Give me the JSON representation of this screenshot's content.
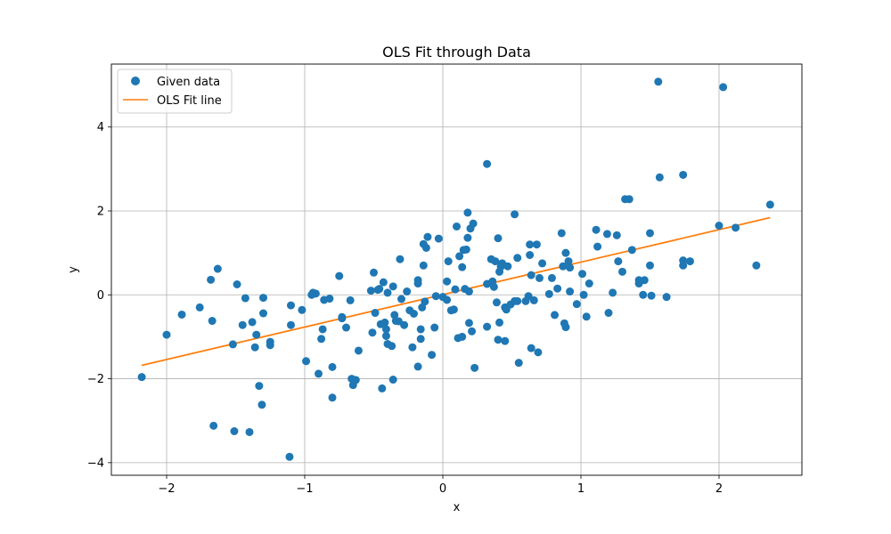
{
  "chart_data": {
    "type": "scatter",
    "title": "OLS Fit through Data",
    "xlabel": "x",
    "ylabel": "y",
    "xlim": [
      -2.4,
      2.6
    ],
    "ylim": [
      -4.3,
      5.5
    ],
    "xticks": [
      -2,
      -1,
      0,
      1,
      2
    ],
    "yticks": [
      -4,
      -2,
      0,
      2,
      4
    ],
    "grid": true,
    "legend_position": "top-left",
    "series": [
      {
        "name": "Given data",
        "kind": "points",
        "color": "#1f77b4",
        "points": [
          [
            -2.18,
            -1.96
          ],
          [
            -2.0,
            -0.95
          ],
          [
            -1.89,
            -0.47
          ],
          [
            -1.76,
            -0.3
          ],
          [
            -1.68,
            0.36
          ],
          [
            -1.66,
            -3.12
          ],
          [
            -1.67,
            -0.62
          ],
          [
            -1.63,
            0.62
          ],
          [
            -1.52,
            -1.18
          ],
          [
            -1.51,
            -3.25
          ],
          [
            -1.49,
            0.25
          ],
          [
            -1.45,
            -0.72
          ],
          [
            -1.43,
            -0.08
          ],
          [
            -1.4,
            -3.27
          ],
          [
            -1.38,
            -0.65
          ],
          [
            -1.36,
            -1.25
          ],
          [
            -1.35,
            -0.95
          ],
          [
            -1.33,
            -2.17
          ],
          [
            -1.31,
            -2.62
          ],
          [
            -1.3,
            -0.44
          ],
          [
            -1.3,
            -0.07
          ],
          [
            -1.25,
            -1.12
          ],
          [
            -1.25,
            -1.2
          ],
          [
            -1.1,
            -0.25
          ],
          [
            -1.11,
            -3.86
          ],
          [
            -1.1,
            -0.72
          ],
          [
            -1.02,
            -0.36
          ],
          [
            -0.99,
            -1.58
          ],
          [
            -0.95,
            0.0
          ],
          [
            -0.94,
            0.05
          ],
          [
            -0.92,
            0.03
          ],
          [
            -0.9,
            -1.88
          ],
          [
            -0.88,
            -1.05
          ],
          [
            -0.87,
            -0.82
          ],
          [
            -0.86,
            -0.12
          ],
          [
            -0.82,
            -0.09
          ],
          [
            -0.8,
            -2.45
          ],
          [
            -0.8,
            -1.72
          ],
          [
            -0.75,
            0.45
          ],
          [
            -0.73,
            -0.53
          ],
          [
            -0.73,
            -0.56
          ],
          [
            -0.7,
            -0.78
          ],
          [
            -0.67,
            -0.13
          ],
          [
            -0.66,
            -2.0
          ],
          [
            -0.65,
            -2.15
          ],
          [
            -0.63,
            -2.03
          ],
          [
            -0.61,
            -1.33
          ],
          [
            -0.52,
            0.1
          ],
          [
            -0.51,
            -0.9
          ],
          [
            -0.5,
            0.53
          ],
          [
            -0.49,
            -0.43
          ],
          [
            -0.47,
            0.12
          ],
          [
            -0.46,
            0.14
          ],
          [
            -0.45,
            -0.7
          ],
          [
            -0.44,
            -2.23
          ],
          [
            -0.43,
            0.3
          ],
          [
            -0.42,
            -0.66
          ],
          [
            -0.41,
            -0.98
          ],
          [
            -0.41,
            -0.82
          ],
          [
            -0.4,
            -1.17
          ],
          [
            -0.4,
            0.05
          ],
          [
            -0.37,
            -1.22
          ],
          [
            -0.36,
            -2.02
          ],
          [
            -0.36,
            0.2
          ],
          [
            -0.35,
            -0.48
          ],
          [
            -0.34,
            -0.62
          ],
          [
            -0.32,
            -0.63
          ],
          [
            -0.31,
            0.85
          ],
          [
            -0.3,
            -0.1
          ],
          [
            -0.28,
            -0.72
          ],
          [
            -0.26,
            0.08
          ],
          [
            -0.24,
            -0.37
          ],
          [
            -0.22,
            -1.25
          ],
          [
            -0.21,
            -0.45
          ],
          [
            -0.18,
            0.27
          ],
          [
            -0.18,
            0.35
          ],
          [
            -0.18,
            -1.71
          ],
          [
            -0.16,
            -0.82
          ],
          [
            -0.16,
            -1.05
          ],
          [
            -0.15,
            -0.3
          ],
          [
            -0.14,
            1.21
          ],
          [
            -0.14,
            0.7
          ],
          [
            -0.13,
            -0.16
          ],
          [
            -0.12,
            1.12
          ],
          [
            -0.11,
            1.38
          ],
          [
            -0.08,
            -1.43
          ],
          [
            -0.06,
            -0.78
          ],
          [
            -0.05,
            -0.03
          ],
          [
            -0.03,
            1.34
          ],
          [
            0.0,
            -0.05
          ],
          [
            0.03,
            0.32
          ],
          [
            0.03,
            -0.12
          ],
          [
            0.04,
            0.8
          ],
          [
            0.06,
            -0.37
          ],
          [
            0.08,
            -0.35
          ],
          [
            0.09,
            0.13
          ],
          [
            0.1,
            1.63
          ],
          [
            0.11,
            -1.03
          ],
          [
            0.12,
            0.92
          ],
          [
            0.14,
            0.66
          ],
          [
            0.14,
            -1.0
          ],
          [
            0.15,
            1.07
          ],
          [
            0.16,
            0.14
          ],
          [
            0.17,
            1.08
          ],
          [
            0.18,
            1.36
          ],
          [
            0.18,
            1.96
          ],
          [
            0.19,
            -0.67
          ],
          [
            0.19,
            0.08
          ],
          [
            0.2,
            1.58
          ],
          [
            0.21,
            -0.87
          ],
          [
            0.22,
            1.7
          ],
          [
            0.23,
            -1.74
          ],
          [
            0.32,
            3.12
          ],
          [
            0.32,
            0.26
          ],
          [
            0.32,
            -0.76
          ],
          [
            0.35,
            0.85
          ],
          [
            0.36,
            0.32
          ],
          [
            0.37,
            0.19
          ],
          [
            0.38,
            0.8
          ],
          [
            0.39,
            -0.18
          ],
          [
            0.4,
            -1.07
          ],
          [
            0.4,
            1.35
          ],
          [
            0.41,
            0.55
          ],
          [
            0.41,
            -0.66
          ],
          [
            0.42,
            0.67
          ],
          [
            0.43,
            0.75
          ],
          [
            0.45,
            -0.3
          ],
          [
            0.45,
            -1.1
          ],
          [
            0.46,
            -0.35
          ],
          [
            0.47,
            0.68
          ],
          [
            0.49,
            -0.23
          ],
          [
            0.52,
            -0.15
          ],
          [
            0.52,
            1.92
          ],
          [
            0.54,
            0.88
          ],
          [
            0.54,
            -0.15
          ],
          [
            0.55,
            -1.62
          ],
          [
            0.6,
            -0.15
          ],
          [
            0.62,
            -0.03
          ],
          [
            0.63,
            1.2
          ],
          [
            0.63,
            0.95
          ],
          [
            0.64,
            0.47
          ],
          [
            0.64,
            -1.27
          ],
          [
            0.66,
            -0.13
          ],
          [
            0.68,
            1.2
          ],
          [
            0.69,
            -1.37
          ],
          [
            0.7,
            0.4
          ],
          [
            0.72,
            0.75
          ],
          [
            0.77,
            0.02
          ],
          [
            0.79,
            0.4
          ],
          [
            0.81,
            -0.48
          ],
          [
            0.83,
            0.15
          ],
          [
            0.86,
            1.47
          ],
          [
            0.87,
            0.68
          ],
          [
            0.88,
            -0.68
          ],
          [
            0.89,
            1.0
          ],
          [
            0.89,
            -0.77
          ],
          [
            0.91,
            0.8
          ],
          [
            0.92,
            0.65
          ],
          [
            0.92,
            0.08
          ],
          [
            0.97,
            -0.22
          ],
          [
            1.01,
            0.5
          ],
          [
            1.02,
            0.0
          ],
          [
            1.04,
            -0.52
          ],
          [
            1.06,
            0.27
          ],
          [
            1.11,
            1.55
          ],
          [
            1.12,
            1.15
          ],
          [
            1.19,
            1.45
          ],
          [
            1.2,
            -0.43
          ],
          [
            1.23,
            0.05
          ],
          [
            1.26,
            1.42
          ],
          [
            1.27,
            0.8
          ],
          [
            1.3,
            0.55
          ],
          [
            1.32,
            2.28
          ],
          [
            1.35,
            2.28
          ],
          [
            1.37,
            1.07
          ],
          [
            1.42,
            0.35
          ],
          [
            1.42,
            0.27
          ],
          [
            1.45,
            0.0
          ],
          [
            1.46,
            0.35
          ],
          [
            1.5,
            1.47
          ],
          [
            1.5,
            0.7
          ],
          [
            1.51,
            -0.02
          ],
          [
            1.56,
            5.08
          ],
          [
            1.57,
            2.8
          ],
          [
            1.62,
            -0.05
          ],
          [
            1.74,
            2.86
          ],
          [
            1.74,
            0.82
          ],
          [
            1.74,
            0.7
          ],
          [
            1.79,
            0.8
          ],
          [
            2.0,
            1.65
          ],
          [
            2.03,
            4.95
          ],
          [
            2.12,
            1.6
          ],
          [
            2.27,
            0.7
          ],
          [
            2.37,
            2.15
          ]
        ]
      },
      {
        "name": "OLS Fit line",
        "kind": "line",
        "color": "#ff7f0e",
        "x": [
          -2.18,
          2.37
        ],
        "y": [
          -1.68,
          1.84
        ]
      }
    ]
  }
}
